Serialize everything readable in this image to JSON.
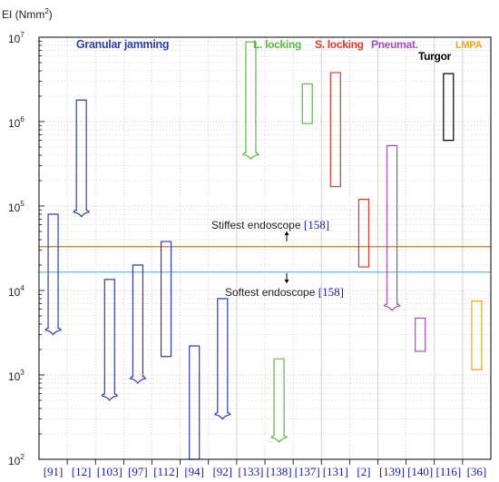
{
  "chart_data": {
    "type": "range-bar",
    "y_axis": {
      "label_prefix": "EI (Nmm",
      "label_sup": "2",
      "label_suffix": ")",
      "scale": "log",
      "ylim": [
        100,
        10000000
      ],
      "tick_labels": [
        {
          "value": 100,
          "base": "10",
          "exp": "2"
        },
        {
          "value": 1000,
          "base": "10",
          "exp": "3"
        },
        {
          "value": 10000,
          "base": "10",
          "exp": "4"
        },
        {
          "value": 100000,
          "base": "10",
          "exp": "5"
        },
        {
          "value": 1000000,
          "base": "10",
          "exp": "6"
        },
        {
          "value": 10000000,
          "base": "10",
          "exp": "7"
        }
      ]
    },
    "grid": true,
    "x_categories": [
      "[91]",
      "[12]",
      "[103]",
      "[97]",
      "[112]",
      "[94]",
      "[92]",
      "[133]",
      "[138]",
      "[137]",
      "[131]",
      "[2]",
      "[139]",
      "[140]",
      "[116]",
      "[36]"
    ],
    "groups": [
      {
        "name": "Granular jamming",
        "color": "#2e3fa0"
      },
      {
        "name": "L. locking",
        "color": "#5db44a"
      },
      {
        "name": "S. locking",
        "color": "#d9382e"
      },
      {
        "name": "Pneumat.",
        "color": "#a24fb5"
      },
      {
        "name": "Turgor",
        "color": "#000000"
      },
      {
        "name": "LMPA",
        "color": "#e8a820"
      }
    ],
    "ranges": [
      {
        "ref": "[91]",
        "group": "Granular jamming",
        "low": 3000,
        "high": 80000,
        "arrow": "down"
      },
      {
        "ref": "[12]",
        "group": "Granular jamming",
        "low": 75000,
        "high": 1800000,
        "arrow": "down"
      },
      {
        "ref": "[103]",
        "group": "Granular jamming",
        "low": 500,
        "high": 13500,
        "arrow": "down"
      },
      {
        "ref": "[97]",
        "group": "Granular jamming",
        "low": 800,
        "high": 20000,
        "arrow": "down"
      },
      {
        "ref": "[112]",
        "group": "Granular jamming",
        "low": 1650,
        "high": 38000,
        "arrow": "none"
      },
      {
        "ref": "[94]",
        "group": "Granular jamming",
        "low": 100,
        "high": 2200,
        "arrow": "none"
      },
      {
        "ref": "[92]",
        "group": "Granular jamming",
        "low": 300,
        "high": 8000,
        "arrow": "down"
      },
      {
        "ref": "[133]",
        "group": "L. locking",
        "low": 360000,
        "high": 8800000,
        "arrow": "down"
      },
      {
        "ref": "[138]",
        "group": "L. locking",
        "low": 160,
        "high": 1550,
        "arrow": "down"
      },
      {
        "ref": "[137]",
        "group": "L. locking",
        "low": 950000,
        "high": 2800000,
        "arrow": "none"
      },
      {
        "ref": "[131]",
        "group": "S. locking",
        "low": 170000,
        "high": 3800000,
        "arrow": "none"
      },
      {
        "ref": "[2]",
        "group": "S. locking",
        "low": 19000,
        "high": 120000,
        "arrow": "none"
      },
      {
        "ref": "[139]",
        "group": "Pneumat.",
        "low": 5800,
        "high": 520000,
        "arrow": "down"
      },
      {
        "ref": "[140]",
        "group": "Pneumat.",
        "low": 1900,
        "high": 4700,
        "arrow": "none"
      },
      {
        "ref": "[116]",
        "group": "Turgor",
        "low": 600000,
        "high": 3700000,
        "arrow": "none"
      },
      {
        "ref": "[36]",
        "group": "LMPA",
        "low": 1150,
        "high": 7500,
        "arrow": "none"
      }
    ],
    "reference_lines": [
      {
        "label": "Stiffest endoscope",
        "cite": "[158]",
        "value": 33000,
        "color": "#c47a1e",
        "arrow": "up"
      },
      {
        "label": "Softest endoscope",
        "cite": "[158]",
        "value": 16500,
        "color": "#6bb6e0",
        "arrow": "down"
      }
    ],
    "cite_color": "#1a1aa0"
  }
}
